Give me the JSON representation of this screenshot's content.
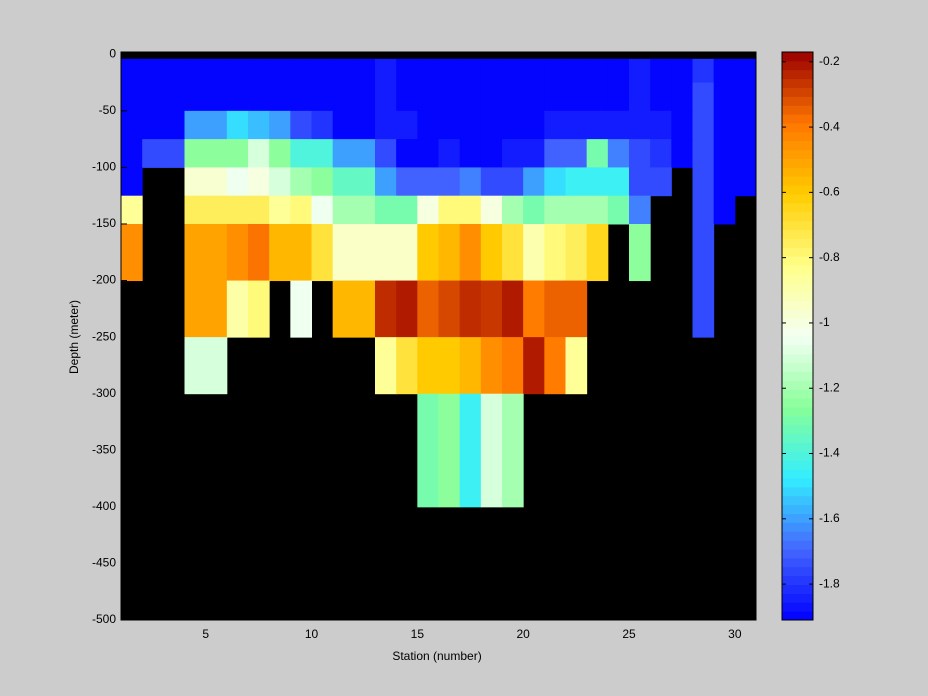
{
  "chart_data": {
    "type": "heatmap",
    "xlabel": "Station (number)",
    "ylabel": "Depth (meter)",
    "xlim": [
      1,
      31
    ],
    "ylim": [
      -500,
      2
    ],
    "xticks": [
      5,
      10,
      15,
      20,
      25,
      30
    ],
    "yticks": [
      0,
      -50,
      -100,
      -150,
      -200,
      -250,
      -300,
      -350,
      -400,
      -450,
      -500
    ],
    "x_edges": [
      1,
      2,
      3,
      4,
      5,
      6,
      7,
      8,
      9,
      10,
      11,
      12,
      13,
      14,
      15,
      16,
      17,
      18,
      19,
      20,
      21,
      22,
      23,
      24,
      25,
      26,
      27,
      28,
      29,
      30,
      31
    ],
    "y_edges": [
      -4,
      -25,
      -50,
      -75,
      -100,
      -125,
      -150,
      -200,
      -250,
      -300,
      -400
    ],
    "background": "#000000",
    "clim": [
      -1.91,
      -0.17
    ],
    "colormap": [
      "#0000ff",
      "#4466ff",
      "#33eeff",
      "#88ff99",
      "#f4fff4",
      "#ffff88",
      "#ffcc00",
      "#ff7700",
      "#990000"
    ],
    "cbar_ticks": [
      -0.2,
      -0.4,
      -0.6,
      -0.8,
      -1,
      -1.2,
      -1.4,
      -1.6,
      -1.8
    ],
    "values": [
      [
        -1.9,
        -1.9,
        -1.9,
        -1.9,
        -1.9,
        -1.9,
        -1.9,
        -1.9,
        -1.9,
        -1.9,
        -1.9,
        -1.9,
        -1.85,
        -1.9,
        -1.9,
        -1.9,
        -1.9,
        -1.9,
        -1.9,
        -1.9,
        -1.9,
        -1.9,
        -1.9,
        -1.9,
        -1.85,
        -1.9,
        -1.9,
        -1.8,
        -1.9,
        -1.9
      ],
      [
        -1.9,
        -1.9,
        -1.9,
        -1.9,
        -1.9,
        -1.9,
        -1.9,
        -1.9,
        -1.9,
        -1.9,
        -1.9,
        -1.9,
        -1.85,
        -1.9,
        -1.9,
        -1.9,
        -1.9,
        -1.9,
        -1.9,
        -1.9,
        -1.9,
        -1.9,
        -1.9,
        -1.9,
        -1.85,
        -1.9,
        -1.9,
        -1.75,
        -1.9,
        -1.9
      ],
      [
        -1.9,
        -1.9,
        -1.9,
        -1.6,
        -1.6,
        -1.5,
        -1.55,
        -1.6,
        -1.75,
        -1.8,
        -1.9,
        -1.9,
        -1.85,
        -1.85,
        -1.9,
        -1.9,
        -1.9,
        -1.9,
        -1.9,
        -1.9,
        -1.85,
        -1.85,
        -1.85,
        -1.85,
        -1.85,
        -1.85,
        -1.9,
        -1.75,
        -1.9,
        -1.9
      ],
      [
        -1.9,
        -1.75,
        -1.75,
        -1.25,
        -1.25,
        -1.25,
        -1.1,
        -1.25,
        -1.4,
        -1.4,
        -1.6,
        -1.6,
        -1.75,
        -1.9,
        -1.9,
        -1.85,
        -1.9,
        -1.9,
        -1.85,
        -1.85,
        -1.7,
        -1.7,
        -1.3,
        -1.65,
        -1.75,
        -1.8,
        -1.9,
        -1.75,
        -1.9,
        -1.9
      ],
      [
        -1.9,
        null,
        null,
        -0.97,
        -0.97,
        -1.05,
        -1.0,
        -1.1,
        -1.2,
        -1.25,
        -1.35,
        -1.35,
        -1.6,
        -1.7,
        -1.7,
        -1.7,
        -1.65,
        -1.75,
        -1.75,
        -1.6,
        -1.5,
        -1.45,
        -1.45,
        -1.45,
        -1.75,
        -1.75,
        null,
        -1.75,
        -1.9,
        -1.9
      ],
      [
        -0.85,
        null,
        null,
        -0.75,
        -0.75,
        -0.75,
        -0.75,
        -0.85,
        -0.8,
        -1.05,
        -1.2,
        -1.2,
        -1.3,
        -1.3,
        -1.0,
        -0.8,
        -0.8,
        -1.0,
        -1.2,
        -1.3,
        -1.2,
        -1.2,
        -1.2,
        -1.3,
        -1.65,
        null,
        null,
        -1.75,
        -1.9,
        null
      ],
      [
        -0.45,
        null,
        null,
        -0.5,
        -0.5,
        -0.45,
        -0.38,
        -0.55,
        -0.55,
        -0.7,
        -0.95,
        -0.95,
        -0.95,
        -0.95,
        -0.6,
        -0.55,
        -0.45,
        -0.6,
        -0.7,
        -0.9,
        -0.8,
        -0.75,
        -0.65,
        null,
        -1.25,
        null,
        null,
        -1.75,
        null,
        null
      ],
      [
        null,
        null,
        null,
        -0.5,
        -0.5,
        -0.88,
        -0.8,
        null,
        -1.05,
        null,
        -0.55,
        -0.55,
        -0.25,
        -0.22,
        -0.35,
        -0.3,
        -0.25,
        -0.27,
        -0.22,
        -0.4,
        -0.35,
        -0.35,
        null,
        null,
        null,
        null,
        null,
        -1.75,
        null,
        null
      ],
      [
        null,
        null,
        null,
        -1.1,
        -1.1,
        null,
        null,
        null,
        null,
        null,
        null,
        null,
        -0.85,
        -0.7,
        -0.6,
        -0.6,
        -0.55,
        -0.45,
        -0.4,
        -0.22,
        -0.4,
        -0.85,
        null,
        null,
        null,
        null,
        null,
        null,
        null,
        null
      ],
      [
        null,
        null,
        null,
        null,
        null,
        null,
        null,
        null,
        null,
        null,
        null,
        null,
        null,
        null,
        -1.3,
        -1.25,
        -1.45,
        -1.1,
        -1.2,
        null,
        null,
        null,
        null,
        null,
        null,
        null,
        null,
        null,
        null,
        null
      ]
    ]
  }
}
